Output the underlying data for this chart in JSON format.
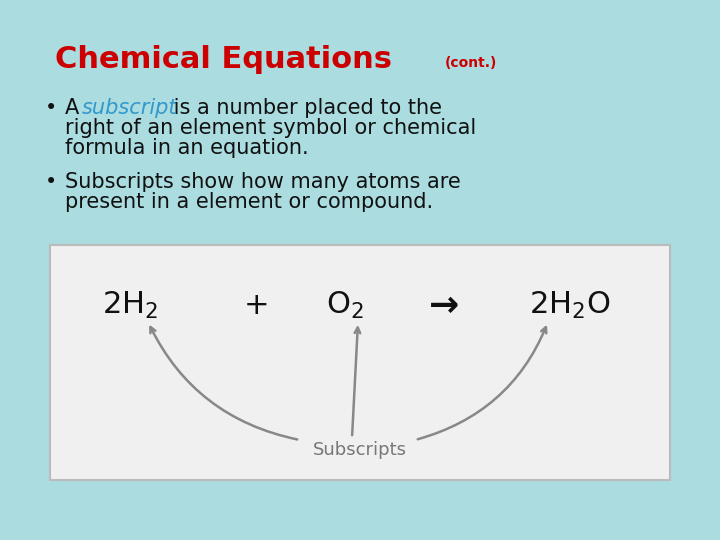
{
  "background_color": "#aadce0",
  "title_main": "Chemical Equations",
  "title_cont": "(cont.)",
  "title_color": "#cc0000",
  "title_fontsize": 22,
  "cont_fontsize": 10,
  "bullet1_highlight_color": "#3399cc",
  "bullet_fontsize": 15,
  "bullet_color": "#111111",
  "box_bg": "#f0f0f0",
  "box_edge": "#bbbbbb",
  "equation_color": "#111111",
  "eq_fontsize": 22,
  "subscript_label": "Subscripts",
  "arrow_color": "#888888"
}
